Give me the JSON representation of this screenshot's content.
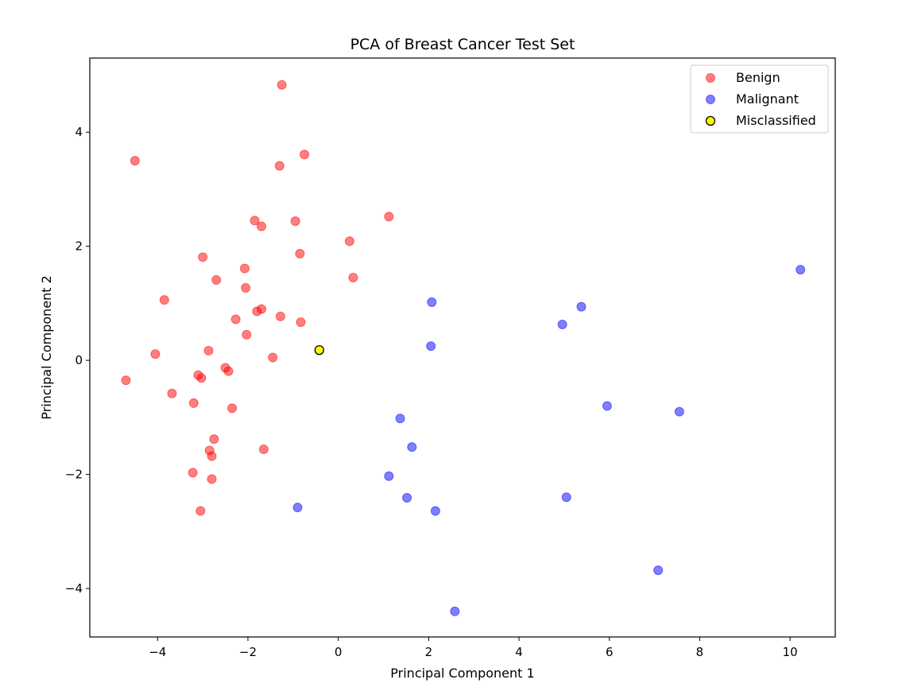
{
  "chart_data": {
    "type": "scatter",
    "title": "PCA of Breast Cancer Test Set",
    "xlabel": "Principal Component 1",
    "ylabel": "Principal Component 2",
    "xlim": [
      -5.5,
      11.0
    ],
    "ylim": [
      -4.85,
      5.3
    ],
    "xticks": [
      -4,
      -2,
      0,
      2,
      4,
      6,
      8,
      10
    ],
    "yticks": [
      -4,
      -2,
      0,
      2,
      4
    ],
    "grid": false,
    "legend_position": "top-right",
    "series": [
      {
        "name": "Benign",
        "color": "#ff0000",
        "points": [
          [
            -1.25,
            4.83
          ],
          [
            -4.5,
            3.5
          ],
          [
            -0.75,
            3.61
          ],
          [
            -1.3,
            3.41
          ],
          [
            -1.85,
            2.45
          ],
          [
            -1.7,
            2.35
          ],
          [
            -0.95,
            2.44
          ],
          [
            1.12,
            2.52
          ],
          [
            0.25,
            2.09
          ],
          [
            -3.0,
            1.81
          ],
          [
            -0.85,
            1.87
          ],
          [
            -2.7,
            1.41
          ],
          [
            -2.07,
            1.61
          ],
          [
            -2.05,
            1.27
          ],
          [
            0.33,
            1.45
          ],
          [
            -3.85,
            1.06
          ],
          [
            -1.8,
            0.86
          ],
          [
            -1.7,
            0.9
          ],
          [
            -2.27,
            0.72
          ],
          [
            -1.28,
            0.77
          ],
          [
            -0.83,
            0.67
          ],
          [
            -2.03,
            0.45
          ],
          [
            -4.05,
            0.11
          ],
          [
            -2.87,
            0.17
          ],
          [
            -1.45,
            0.05
          ],
          [
            -2.5,
            -0.13
          ],
          [
            -2.43,
            -0.19
          ],
          [
            -3.1,
            -0.26
          ],
          [
            -3.03,
            -0.31
          ],
          [
            -4.7,
            -0.35
          ],
          [
            -3.68,
            -0.58
          ],
          [
            -3.2,
            -0.75
          ],
          [
            -2.35,
            -0.84
          ],
          [
            -2.75,
            -1.38
          ],
          [
            -1.65,
            -1.56
          ],
          [
            -2.85,
            -1.58
          ],
          [
            -2.8,
            -1.68
          ],
          [
            -3.22,
            -1.97
          ],
          [
            -2.8,
            -2.08
          ],
          [
            -3.05,
            -2.64
          ]
        ]
      },
      {
        "name": "Malignant",
        "color": "#0000ff",
        "points": [
          [
            10.23,
            1.59
          ],
          [
            5.38,
            0.94
          ],
          [
            2.07,
            1.02
          ],
          [
            4.96,
            0.63
          ],
          [
            2.05,
            0.25
          ],
          [
            5.95,
            -0.8
          ],
          [
            7.55,
            -0.9
          ],
          [
            1.37,
            -1.02
          ],
          [
            1.63,
            -1.52
          ],
          [
            1.12,
            -2.03
          ],
          [
            1.52,
            -2.41
          ],
          [
            5.05,
            -2.4
          ],
          [
            2.15,
            -2.64
          ],
          [
            -0.9,
            -2.58
          ],
          [
            7.08,
            -3.68
          ],
          [
            2.58,
            -4.4
          ]
        ]
      },
      {
        "name": "Misclassified",
        "color": "#ffff00",
        "edgecolor": "#000000",
        "points": [
          [
            -0.42,
            0.18
          ]
        ]
      }
    ]
  }
}
